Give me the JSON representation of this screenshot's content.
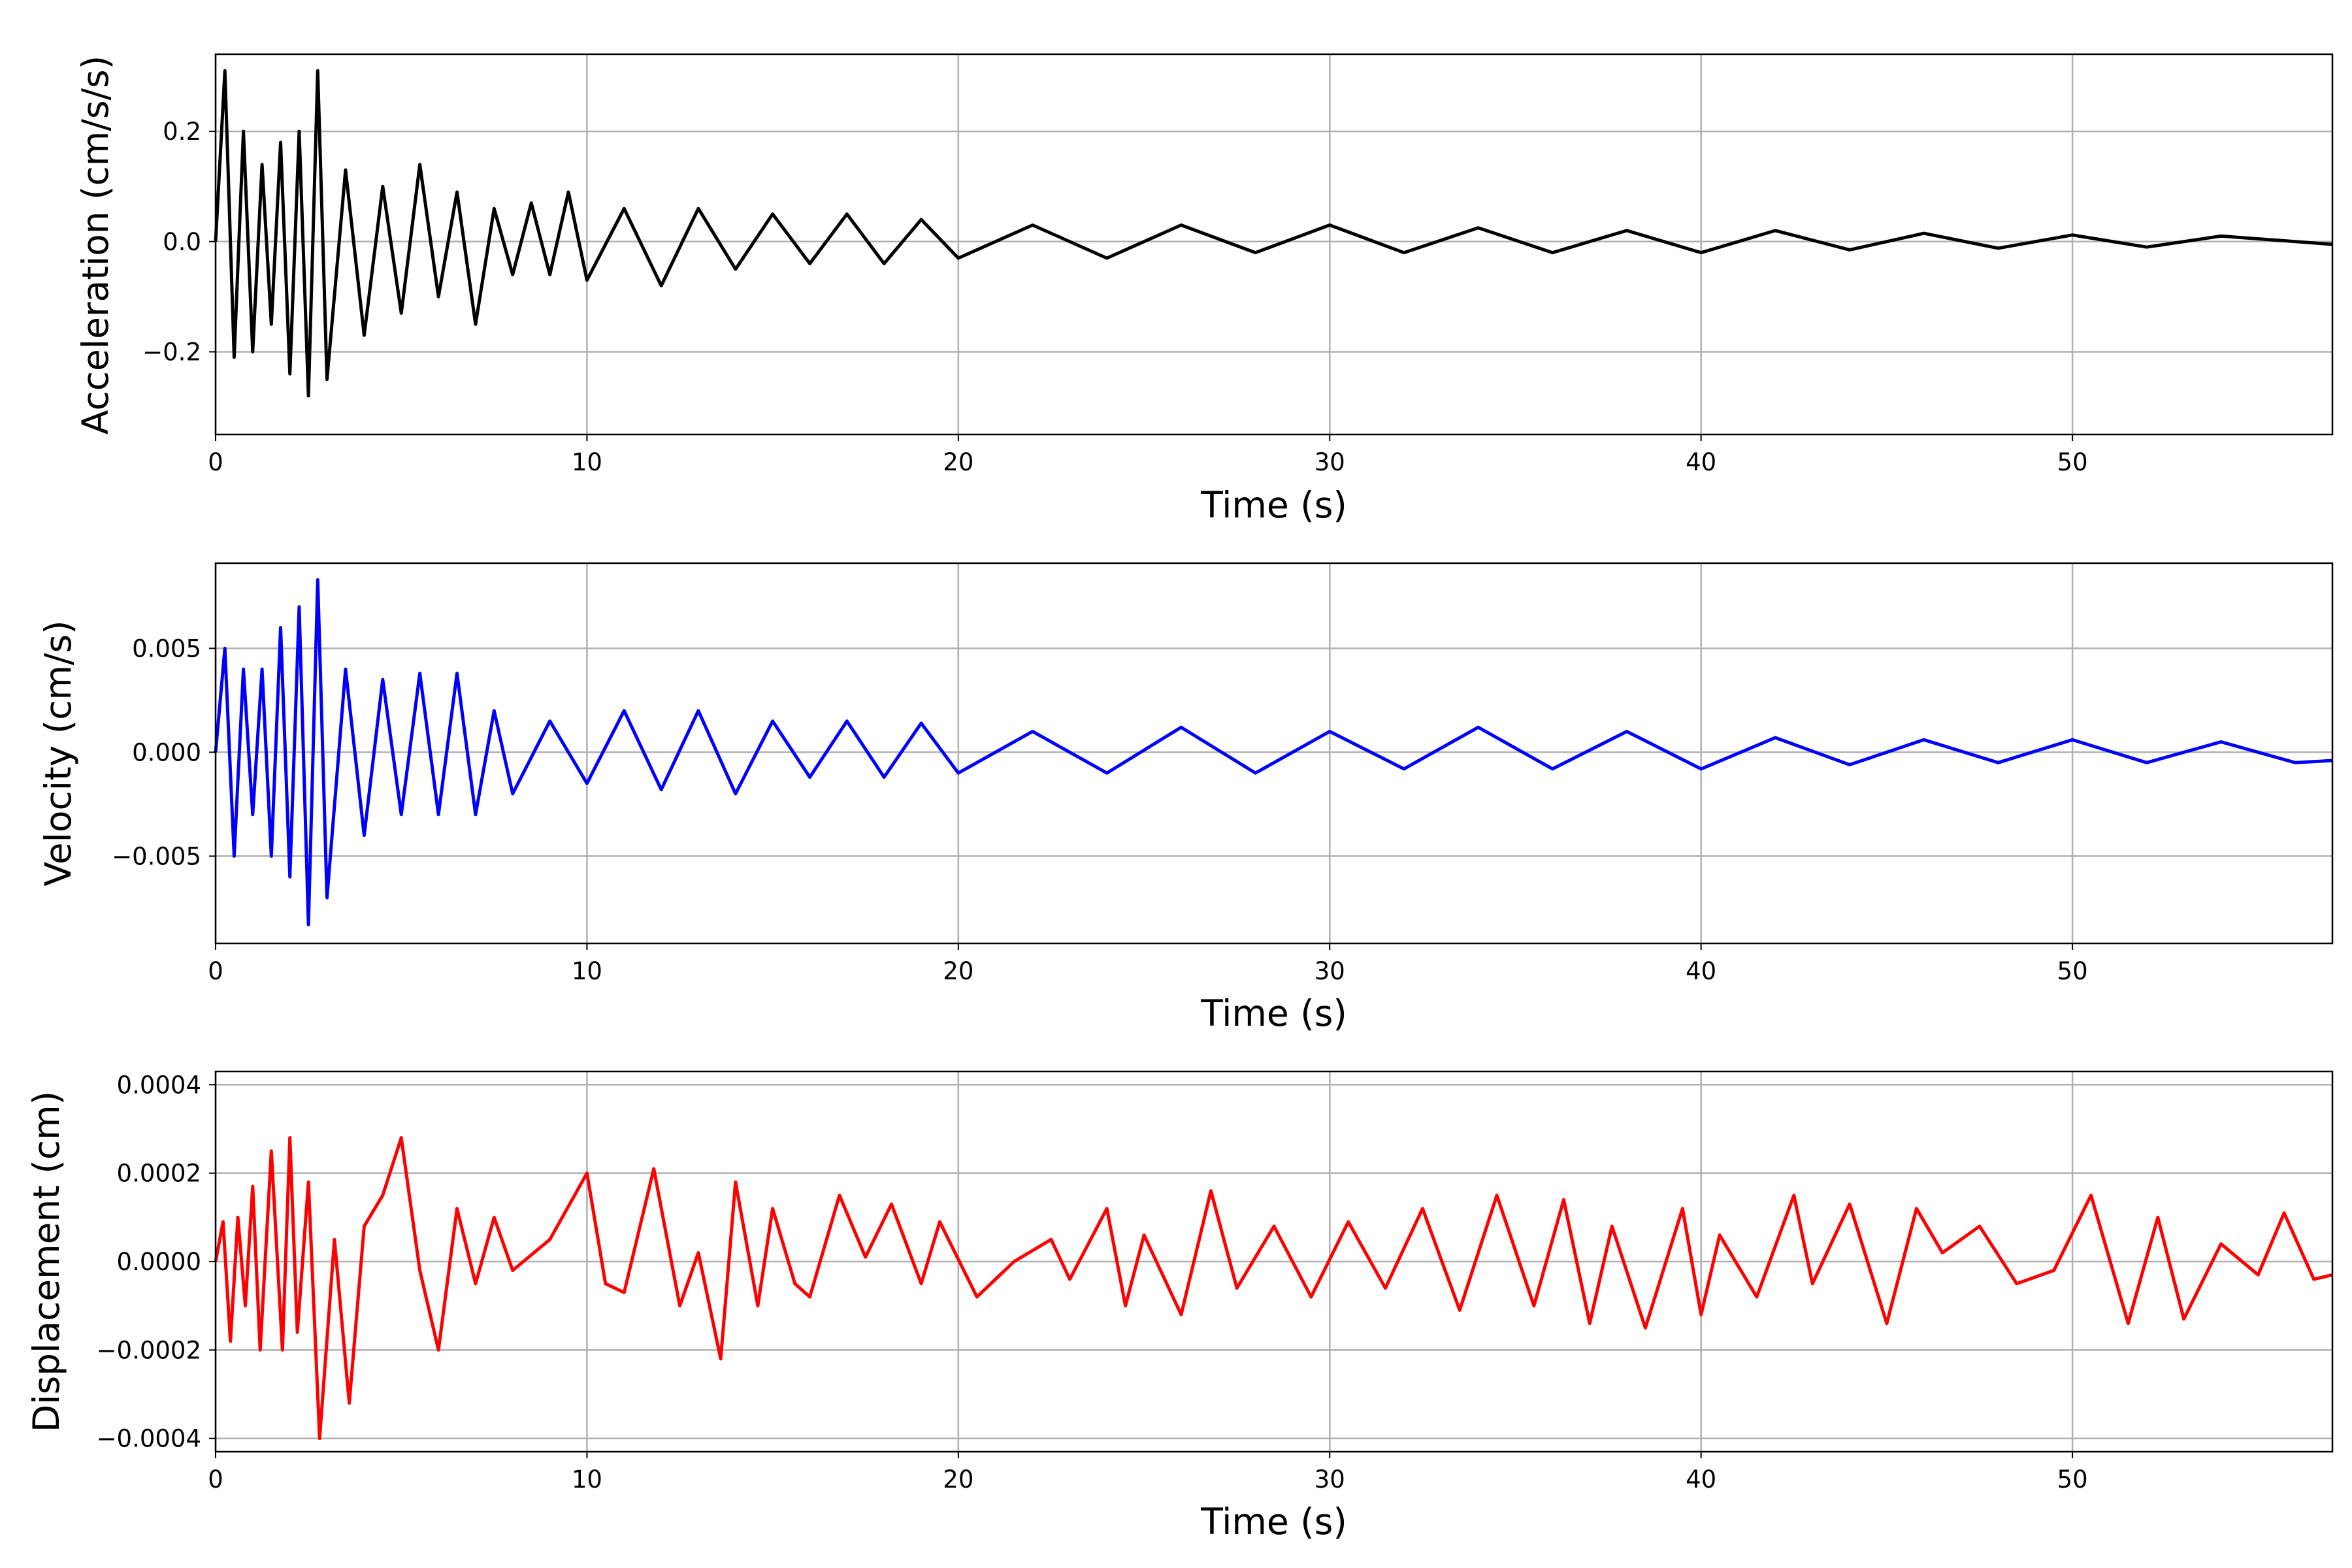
{
  "chart_data": [
    {
      "type": "line",
      "xlabel": "Time (s)",
      "ylabel": "Acceleration (cm/s/s)",
      "xlim": [
        0,
        57
      ],
      "ylim": [
        -0.35,
        0.34
      ],
      "xticks": [
        0,
        10,
        20,
        30,
        40,
        50
      ],
      "xtick_labels": [
        "0",
        "10",
        "20",
        "30",
        "40",
        "50"
      ],
      "yticks": [
        -0.2,
        0.0,
        0.2
      ],
      "ytick_labels": [
        "−0.2",
        "0.0",
        "0.2"
      ],
      "grid": true,
      "legend": "none",
      "color": "#000000",
      "series": [
        {
          "x": [
            0,
            0.25,
            0.5,
            0.75,
            1,
            1.25,
            1.5,
            1.75,
            2,
            2.25,
            2.5,
            2.75,
            3,
            3.5,
            4,
            4.5,
            5,
            5.5,
            6,
            6.5,
            7,
            7.5,
            8,
            8.5,
            9,
            9.5,
            10,
            11,
            12,
            13,
            14,
            15,
            16,
            17,
            18,
            19,
            20,
            22,
            24,
            26,
            28,
            30,
            32,
            34,
            36,
            38,
            40,
            42,
            44,
            46,
            48,
            50,
            52,
            54,
            57
          ],
          "values": [
            0.0,
            0.31,
            -0.21,
            0.2,
            -0.2,
            0.14,
            -0.15,
            0.18,
            -0.24,
            0.2,
            -0.28,
            0.31,
            -0.25,
            0.13,
            -0.17,
            0.1,
            -0.13,
            0.14,
            -0.1,
            0.09,
            -0.15,
            0.06,
            -0.06,
            0.07,
            -0.06,
            0.09,
            -0.07,
            0.06,
            -0.08,
            0.06,
            -0.05,
            0.05,
            -0.04,
            0.05,
            -0.04,
            0.04,
            -0.03,
            0.03,
            -0.03,
            0.03,
            -0.02,
            0.03,
            -0.02,
            0.025,
            -0.02,
            0.02,
            -0.02,
            0.02,
            -0.015,
            0.015,
            -0.012,
            0.012,
            -0.01,
            0.01,
            -0.005
          ]
        }
      ]
    },
    {
      "type": "line",
      "xlabel": "Time (s)",
      "ylabel": "Velocity (cm/s)",
      "xlim": [
        0,
        57
      ],
      "ylim": [
        -0.0092,
        0.0091
      ],
      "xticks": [
        0,
        10,
        20,
        30,
        40,
        50
      ],
      "xtick_labels": [
        "0",
        "10",
        "20",
        "30",
        "40",
        "50"
      ],
      "yticks": [
        -0.005,
        0.0,
        0.005
      ],
      "ytick_labels": [
        "−0.005",
        "0.000",
        "0.005"
      ],
      "grid": true,
      "legend": "none",
      "color": "#0000ff",
      "series": [
        {
          "x": [
            0,
            0.25,
            0.5,
            0.75,
            1,
            1.25,
            1.5,
            1.75,
            2,
            2.25,
            2.5,
            2.75,
            3,
            3.5,
            4,
            4.5,
            5,
            5.5,
            6,
            6.5,
            7,
            7.5,
            8,
            9,
            10,
            11,
            12,
            13,
            14,
            15,
            16,
            17,
            18,
            19,
            20,
            22,
            24,
            26,
            28,
            30,
            32,
            34,
            36,
            38,
            40,
            42,
            44,
            46,
            48,
            50,
            52,
            54,
            56,
            57
          ],
          "values": [
            0.0,
            0.005,
            -0.005,
            0.004,
            -0.003,
            0.004,
            -0.005,
            0.006,
            -0.006,
            0.007,
            -0.0083,
            0.0083,
            -0.007,
            0.004,
            -0.004,
            0.0035,
            -0.003,
            0.0038,
            -0.003,
            0.0038,
            -0.003,
            0.002,
            -0.002,
            0.0015,
            -0.0015,
            0.002,
            -0.0018,
            0.002,
            -0.002,
            0.0015,
            -0.0012,
            0.0015,
            -0.0012,
            0.0014,
            -0.001,
            0.001,
            -0.001,
            0.0012,
            -0.001,
            0.001,
            -0.0008,
            0.0012,
            -0.0008,
            0.001,
            -0.0008,
            0.0007,
            -0.0006,
            0.0006,
            -0.0005,
            0.0006,
            -0.0005,
            0.0005,
            -0.0005,
            -0.0004
          ]
        }
      ]
    },
    {
      "type": "line",
      "xlabel": "Time (s)",
      "ylabel": "Displacement (cm)",
      "xlim": [
        0,
        57
      ],
      "ylim": [
        -0.00043,
        0.00043
      ],
      "xticks": [
        0,
        10,
        20,
        30,
        40,
        50
      ],
      "xtick_labels": [
        "0",
        "10",
        "20",
        "30",
        "40",
        "50"
      ],
      "yticks": [
        -0.0004,
        -0.0002,
        0.0,
        0.0002,
        0.0004
      ],
      "ytick_labels": [
        "−0.0004",
        "−0.0002",
        "0.0000",
        "0.0002",
        "0.0004"
      ],
      "grid": true,
      "legend": "none",
      "color": "#ff0000",
      "series": [
        {
          "x": [
            0,
            0.2,
            0.4,
            0.6,
            0.8,
            1.0,
            1.2,
            1.5,
            1.8,
            2.0,
            2.2,
            2.5,
            2.8,
            3.2,
            3.6,
            4.0,
            4.5,
            5.0,
            5.5,
            6.0,
            6.5,
            7.0,
            7.5,
            8.0,
            9.0,
            10.0,
            10.5,
            11.0,
            11.8,
            12.5,
            13.0,
            13.6,
            14.0,
            14.6,
            15.0,
            15.6,
            16.0,
            16.8,
            17.5,
            18.2,
            19.0,
            19.5,
            20.5,
            21.5,
            22.5,
            23.0,
            24.0,
            24.5,
            25.0,
            26.0,
            26.8,
            27.5,
            28.5,
            29.5,
            30.5,
            31.5,
            32.5,
            33.5,
            34.5,
            35.5,
            36.3,
            37.0,
            37.6,
            38.5,
            39.5,
            40.0,
            40.5,
            41.5,
            42.5,
            43.0,
            44.0,
            45.0,
            45.8,
            46.5,
            47.5,
            48.5,
            49.5,
            50.5,
            51.5,
            52.3,
            53.0,
            54.0,
            55.0,
            55.7,
            56.5,
            57.0
          ],
          "values": [
            0.0,
            9e-05,
            -0.00018,
            0.0001,
            -0.0001,
            0.00017,
            -0.0002,
            0.00025,
            -0.0002,
            0.00028,
            -0.00016,
            0.00018,
            -0.0004,
            5e-05,
            -0.00032,
            8e-05,
            0.00015,
            0.00028,
            -2e-05,
            -0.0002,
            0.00012,
            -5e-05,
            0.0001,
            -2e-05,
            5e-05,
            0.0002,
            -5e-05,
            -7e-05,
            0.00021,
            -0.0001,
            2e-05,
            -0.00022,
            0.00018,
            -0.0001,
            0.00012,
            -5e-05,
            -8e-05,
            0.00015,
            1e-05,
            0.00013,
            -5e-05,
            9e-05,
            -8e-05,
            0.0,
            5e-05,
            -4e-05,
            0.00012,
            -0.0001,
            6e-05,
            -0.00012,
            0.00016,
            -6e-05,
            8e-05,
            -8e-05,
            9e-05,
            -6e-05,
            0.00012,
            -0.00011,
            0.00015,
            -0.0001,
            0.00014,
            -0.00014,
            8e-05,
            -0.00015,
            0.00012,
            -0.00012,
            6e-05,
            -8e-05,
            0.00015,
            -5e-05,
            0.00013,
            -0.00014,
            0.00012,
            2e-05,
            8e-05,
            -5e-05,
            -2e-05,
            0.00015,
            -0.00014,
            0.0001,
            -0.00013,
            4e-05,
            -3e-05,
            0.00011,
            -4e-05,
            -3e-05
          ]
        }
      ]
    }
  ]
}
